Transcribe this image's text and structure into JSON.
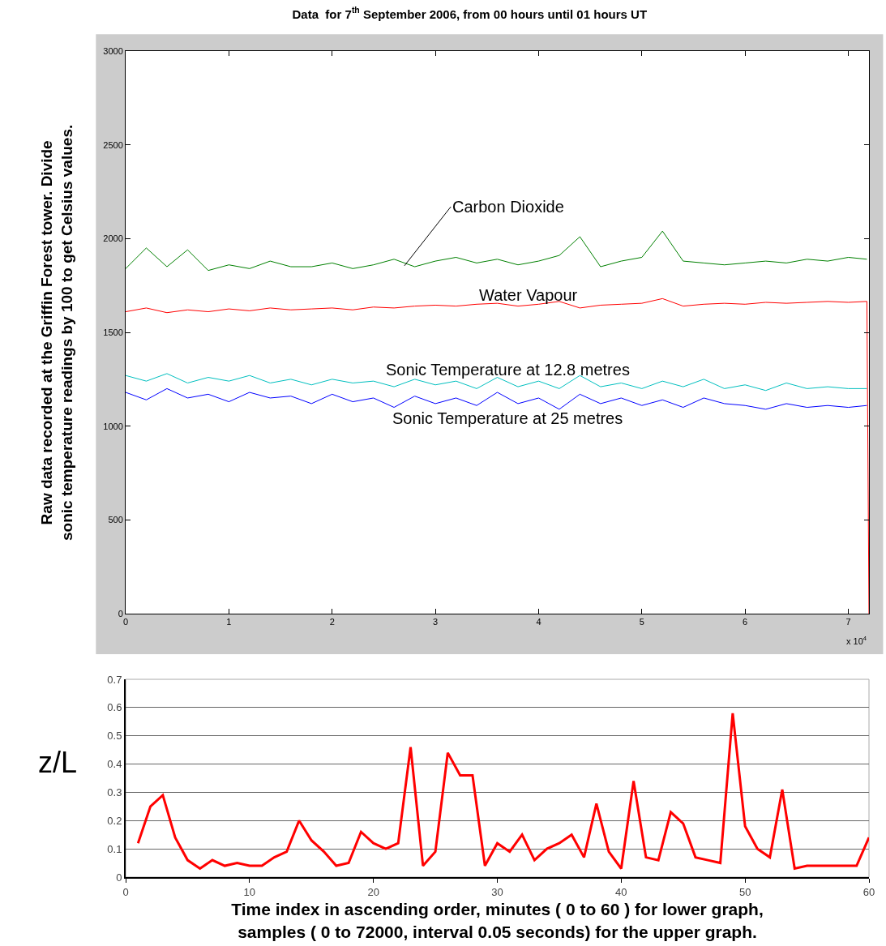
{
  "chart_data": [
    {
      "type": "line",
      "title": "Data  for 7$^{th}$ September 2006, from 00 hours until 01 hours UT",
      "ylabel": "Raw data recorded at the Griffin Forest tower. Divide\nsonic temperature readings by 100 to get Celsius values.",
      "x": [
        0,
        0.2,
        0.4,
        0.6,
        0.8,
        1,
        1.2,
        1.4,
        1.6,
        1.8,
        2,
        2.2,
        2.4,
        2.6,
        2.8,
        3,
        3.2,
        3.4,
        3.6,
        3.8,
        4,
        4.2,
        4.4,
        4.6,
        4.8,
        5,
        5.2,
        5.4,
        5.6,
        5.8,
        6,
        6.2,
        6.4,
        6.6,
        6.8,
        7,
        7.18
      ],
      "series": [
        {
          "name": "Carbon Dioxide",
          "color": "#008000",
          "values": [
            1840,
            1950,
            1850,
            1940,
            1830,
            1860,
            1840,
            1880,
            1850,
            1850,
            1870,
            1840,
            1860,
            1890,
            1850,
            1880,
            1900,
            1870,
            1890,
            1860,
            1880,
            1910,
            2010,
            1850,
            1880,
            1900,
            2040,
            1880,
            1870,
            1860,
            1870,
            1880,
            1870,
            1890,
            1880,
            1900,
            1890
          ]
        },
        {
          "name": "Sonic Temperature at 12.8 metres",
          "color": "#00bfbf",
          "values": [
            1270,
            1240,
            1280,
            1230,
            1260,
            1240,
            1270,
            1230,
            1250,
            1220,
            1250,
            1230,
            1240,
            1210,
            1250,
            1220,
            1240,
            1200,
            1260,
            1210,
            1240,
            1200,
            1270,
            1210,
            1230,
            1200,
            1240,
            1210,
            1250,
            1200,
            1220,
            1190,
            1230,
            1200,
            1210,
            1200,
            1200
          ]
        },
        {
          "name": "Sonic Temperature at 25 metres",
          "color": "#0000ff",
          "values": [
            1180,
            1140,
            1200,
            1150,
            1170,
            1130,
            1180,
            1150,
            1160,
            1120,
            1170,
            1130,
            1150,
            1100,
            1160,
            1120,
            1150,
            1110,
            1180,
            1120,
            1150,
            1090,
            1170,
            1120,
            1150,
            1110,
            1140,
            1100,
            1150,
            1120,
            1110,
            1090,
            1120,
            1100,
            1110,
            1100,
            1110
          ]
        },
        {
          "name": "Water Vapour",
          "color": "#ff0000",
          "x": [
            0,
            0.2,
            0.4,
            0.6,
            0.8,
            1,
            1.2,
            1.4,
            1.6,
            1.8,
            2,
            2.2,
            2.4,
            2.6,
            2.8,
            3,
            3.2,
            3.4,
            3.6,
            3.8,
            4,
            4.2,
            4.4,
            4.6,
            4.8,
            5,
            5.2,
            5.4,
            5.6,
            5.8,
            6,
            6.2,
            6.4,
            6.6,
            6.8,
            7,
            7.18,
            7.2
          ],
          "values": [
            1610,
            1630,
            1605,
            1620,
            1610,
            1625,
            1615,
            1630,
            1620,
            1625,
            1630,
            1620,
            1635,
            1630,
            1640,
            1645,
            1640,
            1650,
            1655,
            1640,
            1650,
            1665,
            1630,
            1645,
            1650,
            1655,
            1680,
            1640,
            1650,
            1655,
            1650,
            1660,
            1655,
            1660,
            1665,
            1660,
            1665,
            0
          ]
        }
      ],
      "xlim": [
        0,
        7.2
      ],
      "xticks": [
        0,
        1,
        2,
        3,
        4,
        5,
        6,
        7
      ],
      "ylim": [
        0,
        3000
      ],
      "yticks": [
        0,
        500,
        1000,
        1500,
        2000,
        2500,
        3000
      ],
      "annotations": [
        "x 10$^{4}$"
      ],
      "grid": false,
      "legend": false,
      "marker": "none",
      "line_style": "solid"
    },
    {
      "type": "line",
      "xlabel": "Time index in ascending order, minutes ( 0 to 60 ) for lower graph,\nsamples ( 0 to 72000, interval 0.05 seconds) for the upper graph.",
      "ylabel": "z/L",
      "x": [
        1,
        2,
        3,
        4,
        5,
        6,
        7,
        8,
        9,
        10,
        11,
        12,
        13,
        14,
        15,
        16,
        17,
        18,
        19,
        20,
        21,
        22,
        23,
        24,
        25,
        26,
        27,
        28,
        29,
        30,
        31,
        32,
        33,
        34,
        35,
        36,
        37,
        38,
        39,
        40,
        41,
        42,
        43,
        44,
        45,
        46,
        47,
        48,
        49,
        50,
        51,
        52,
        53,
        54,
        55,
        56,
        57,
        58,
        59,
        60
      ],
      "series": [
        {
          "color": "#ff0000",
          "values": [
            0.12,
            0.25,
            0.29,
            0.14,
            0.06,
            0.03,
            0.06,
            0.04,
            0.05,
            0.04,
            0.04,
            0.07,
            0.09,
            0.2,
            0.13,
            0.09,
            0.04,
            0.05,
            0.16,
            0.12,
            0.1,
            0.12,
            0.46,
            0.04,
            0.09,
            0.44,
            0.36,
            0.36,
            0.04,
            0.12,
            0.09,
            0.15,
            0.06,
            0.1,
            0.12,
            0.15,
            0.07,
            0.26,
            0.09,
            0.03,
            0.34,
            0.07,
            0.06,
            0.23,
            0.19,
            0.07,
            0.06,
            0.05,
            0.58,
            0.18,
            0.1,
            0.07,
            0.31,
            0.03,
            0.04,
            0.04,
            0.04,
            0.04,
            0.04,
            0.14
          ]
        }
      ],
      "xlim": [
        0,
        60
      ],
      "xticks": [
        0,
        10,
        20,
        30,
        40,
        50,
        60
      ],
      "ylim": [
        0,
        0.7
      ],
      "yticks": [
        0,
        0.1,
        0.2,
        0.3,
        0.4,
        0.5,
        0.6,
        0.7
      ],
      "grid": "y",
      "legend": false,
      "marker": "none",
      "line_style": "solid"
    }
  ]
}
